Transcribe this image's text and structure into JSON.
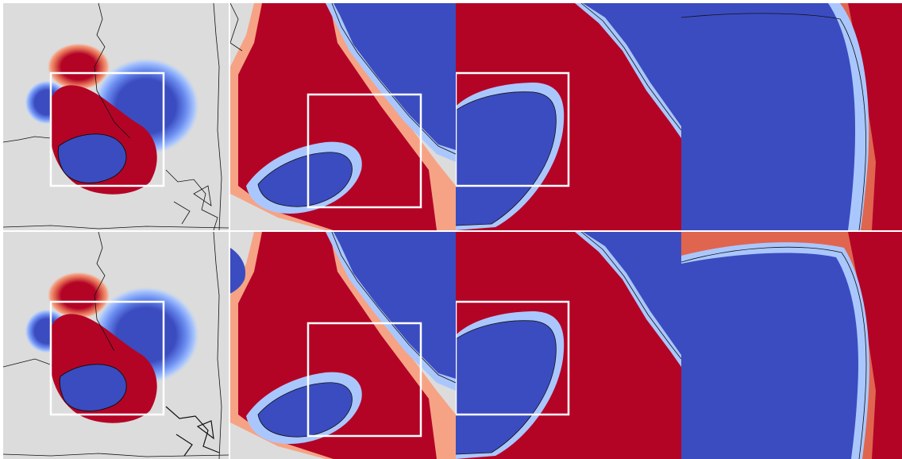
{
  "figure": {
    "rows": [
      {
        "name": "row-top",
        "panels": [
          "overview",
          "zoom-1",
          "zoom-2",
          "zoom-3"
        ]
      },
      {
        "name": "row-bottom",
        "panels": [
          "overview",
          "zoom-1",
          "zoom-2",
          "zoom-3"
        ]
      }
    ],
    "colors": {
      "background": "#dcdcdc",
      "red_dark": "#b40426",
      "red_mid": "#e0654f",
      "red_light": "#f6a385",
      "red_pale": "#f3c7b1",
      "blue_dark": "#3b4cc0",
      "blue_mid": "#6b8df0",
      "blue_light": "#aac7fd",
      "blue_pale": "#cdd9ec",
      "contour": "#111111",
      "zoom_box": "#ffffff",
      "separator": "#ffffff"
    }
  }
}
